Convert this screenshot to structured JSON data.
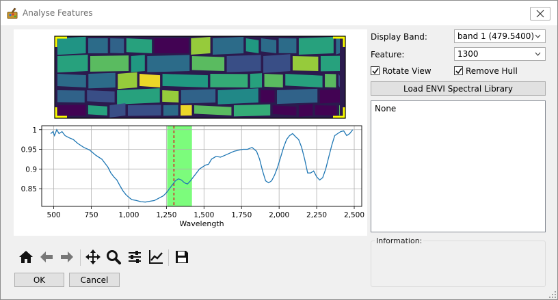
{
  "window": {
    "title": "Analyse Features",
    "icon": "app-palette-icon"
  },
  "hyperspectral_image": {
    "description_visible": false,
    "colormap": "viridis",
    "frame_color": "#ffff00"
  },
  "chart_data": {
    "type": "line",
    "title": "",
    "xlabel": "Wavelength",
    "ylabel": "",
    "xlim": [
      420,
      2550
    ],
    "ylim": [
      0.805,
      1.01
    ],
    "x_ticks": [
      500,
      750,
      1000,
      1250,
      1500,
      1750,
      2000,
      2250,
      2500
    ],
    "x_tick_labels": [
      "500",
      "750",
      "1,000",
      "1,250",
      "1,500",
      "1,750",
      "2,000",
      "2,250",
      "2,500"
    ],
    "y_ticks": [
      0.85,
      0.9,
      0.95,
      1.0
    ],
    "y_tick_labels": [
      "0.85",
      "0.9",
      "0.95",
      "1"
    ],
    "grid": true,
    "line_color": "#1f77b4",
    "highlight_range": [
      1255,
      1420
    ],
    "highlight_color": "#7cfc7c",
    "marker_x": 1300,
    "marker_color": "#d62728",
    "series": [
      {
        "x": [
          480,
          495,
          505,
          520,
          535,
          555,
          575,
          600,
          630,
          660,
          700,
          740,
          780,
          820,
          860,
          880,
          900,
          920,
          940,
          960,
          980,
          1000,
          1020,
          1050,
          1080,
          1110,
          1140,
          1170,
          1200,
          1230,
          1250,
          1270,
          1290,
          1310,
          1330,
          1350,
          1370,
          1390,
          1410,
          1430,
          1450,
          1470,
          1490,
          1510,
          1530,
          1550,
          1580,
          1610,
          1640,
          1670,
          1700,
          1730,
          1760,
          1790,
          1820,
          1850,
          1870,
          1890,
          1910,
          1930,
          1950,
          1970,
          1990,
          2010,
          2030,
          2050,
          2070,
          2090,
          2110,
          2130,
          2150,
          2170,
          2190,
          2210,
          2230,
          2250,
          2270,
          2290,
          2310,
          2330,
          2350,
          2370,
          2390,
          2410,
          2430,
          2450,
          2470,
          2490
        ],
        "y": [
          0.99,
          0.995,
          0.985,
          1.0,
          0.99,
          0.995,
          0.985,
          0.98,
          0.975,
          0.965,
          0.955,
          0.948,
          0.935,
          0.925,
          0.905,
          0.89,
          0.88,
          0.872,
          0.858,
          0.845,
          0.835,
          0.828,
          0.822,
          0.82,
          0.817,
          0.816,
          0.818,
          0.82,
          0.826,
          0.832,
          0.84,
          0.85,
          0.86,
          0.87,
          0.875,
          0.872,
          0.865,
          0.862,
          0.87,
          0.88,
          0.89,
          0.9,
          0.905,
          0.91,
          0.912,
          0.925,
          0.932,
          0.93,
          0.935,
          0.94,
          0.945,
          0.948,
          0.95,
          0.95,
          0.955,
          0.945,
          0.925,
          0.895,
          0.87,
          0.865,
          0.87,
          0.885,
          0.905,
          0.93,
          0.955,
          0.975,
          0.985,
          0.99,
          0.982,
          0.975,
          0.955,
          0.925,
          0.89,
          0.89,
          0.895,
          0.88,
          0.872,
          0.878,
          0.9,
          0.93,
          0.96,
          0.985,
          0.99,
          0.995,
          0.997,
          0.985,
          0.99,
          1.0
        ]
      }
    ]
  },
  "toolbar": {
    "tools": [
      {
        "name": "home-icon"
      },
      {
        "name": "back-arrow-icon"
      },
      {
        "name": "forward-arrow-icon"
      },
      {
        "name": "pan-move-icon"
      },
      {
        "name": "zoom-magnifier-icon"
      },
      {
        "name": "configure-subplots-icon"
      },
      {
        "name": "edit-axes-icon"
      },
      {
        "name": "save-floppy-icon"
      }
    ]
  },
  "buttons": {
    "ok": "OK",
    "cancel": "Cancel",
    "load_library": "Load ENVI Spectral Library"
  },
  "controls": {
    "display_band_label": "Display Band:",
    "display_band_value": "band 1 (479.5400)",
    "feature_label": "Feature:",
    "feature_value": "1300",
    "rotate_view_label": "Rotate View",
    "rotate_view_checked": true,
    "remove_hull_label": "Remove Hull",
    "remove_hull_checked": true
  },
  "library_list": {
    "items": [
      "None"
    ]
  },
  "information": {
    "legend": "Information:"
  }
}
